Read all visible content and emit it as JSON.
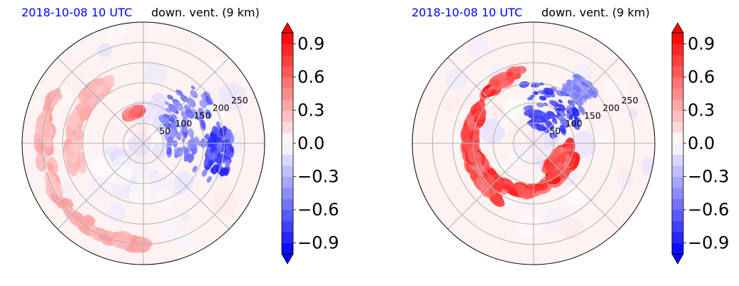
{
  "chart_data": [
    {
      "type": "heatmap",
      "projection": "polar",
      "title_left": "2018-10-08 10 UTC",
      "title_right": "down. vent. (9 km)",
      "radial_ticks": [
        "50",
        "100",
        "150",
        "200",
        "250"
      ],
      "radial_tick_values": [
        50,
        100,
        150,
        200,
        250
      ],
      "r_max": 300,
      "angular_grid_deg": [
        0,
        45,
        90,
        135,
        180,
        225,
        270,
        315
      ],
      "colorbar": {
        "ticks": [
          "0.9",
          "0.6",
          "0.3",
          "0.0",
          "−0.3",
          "−0.6",
          "−0.9"
        ],
        "tick_values": [
          0.9,
          0.6,
          0.3,
          0.0,
          -0.3,
          -0.6,
          -0.9
        ],
        "range": [
          -1.0,
          1.0
        ],
        "extend": "both",
        "cmap": "bwr",
        "low_color": "#0000ff",
        "mid_color": "#ffffff",
        "high_color": "#ff0000"
      },
      "features": [
        {
          "kind": "positive-arc",
          "theta": [
            150,
            270
          ],
          "r": [
            230,
            260
          ],
          "value": 0.4
        },
        {
          "kind": "positive-arc",
          "theta": [
            120,
            200
          ],
          "r": [
            160,
            190
          ],
          "value": 0.35
        },
        {
          "kind": "positive-blob",
          "theta": [
            100,
            115
          ],
          "r": [
            75,
            85
          ],
          "value": 0.7
        },
        {
          "kind": "negative-cluster",
          "theta": [
            -30,
            60
          ],
          "r": [
            60,
            200
          ],
          "value": -0.7
        },
        {
          "kind": "negative-cluster",
          "theta": [
            -20,
            10
          ],
          "r": [
            160,
            220
          ],
          "value": -0.9
        }
      ]
    },
    {
      "type": "heatmap",
      "projection": "polar",
      "title_left": "2018-10-08 10 UTC",
      "title_right": "down. vent. (9 km)",
      "radial_ticks": [
        "50",
        "100",
        "150",
        "200",
        "250"
      ],
      "radial_tick_values": [
        50,
        100,
        150,
        200,
        250
      ],
      "r_max": 300,
      "angular_grid_deg": [
        0,
        45,
        90,
        135,
        180,
        225,
        270,
        315
      ],
      "colorbar": {
        "ticks": [
          "0.9",
          "0.6",
          "0.3",
          "0.0",
          "−0.3",
          "−0.6",
          "−0.9"
        ],
        "tick_values": [
          0.9,
          0.6,
          0.3,
          0.0,
          -0.3,
          -0.6,
          -0.9
        ],
        "range": [
          -1.0,
          1.0
        ],
        "extend": "both",
        "cmap": "bwr",
        "low_color": "#0000ff",
        "mid_color": "#ffffff",
        "high_color": "#ff0000"
      },
      "features": [
        {
          "kind": "positive-spiral",
          "theta": [
            100,
            360
          ],
          "r": [
            80,
            180
          ],
          "value": 0.95
        },
        {
          "kind": "positive-arc",
          "theta": [
            150,
            240
          ],
          "r": [
            140,
            170
          ],
          "value": 0.9
        },
        {
          "kind": "positive-blob",
          "theta": [
            300,
            340
          ],
          "r": [
            60,
            110
          ],
          "value": 0.95
        },
        {
          "kind": "negative-cluster",
          "theta": [
            20,
            100
          ],
          "r": [
            40,
            150
          ],
          "value": -0.9
        },
        {
          "kind": "negative-band",
          "theta": [
            40,
            60
          ],
          "r": [
            150,
            200
          ],
          "value": -0.6
        }
      ]
    }
  ]
}
